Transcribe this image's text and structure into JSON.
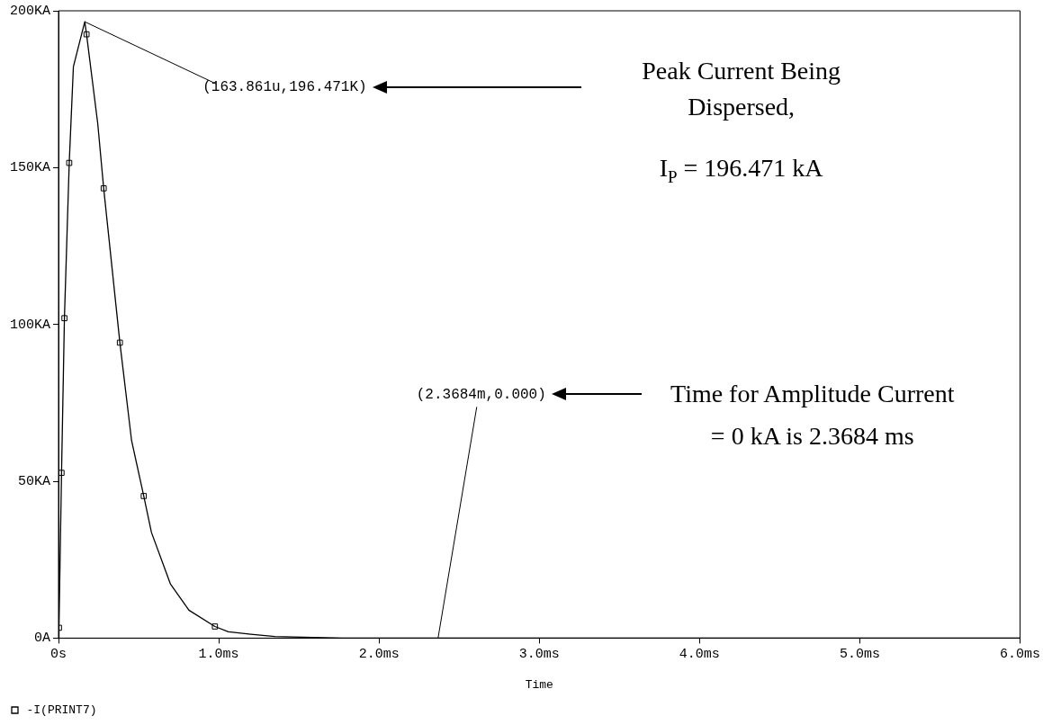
{
  "chart_data": {
    "type": "line",
    "xlabel": "Time",
    "xlim": [
      0,
      6
    ],
    "xticks": [
      {
        "value": 0,
        "label": "0s"
      },
      {
        "value": 1,
        "label": "1.0ms"
      },
      {
        "value": 2,
        "label": "2.0ms"
      },
      {
        "value": 3,
        "label": "3.0ms"
      },
      {
        "value": 4,
        "label": "4.0ms"
      },
      {
        "value": 5,
        "label": "5.0ms"
      },
      {
        "value": 6,
        "label": "6.0ms"
      }
    ],
    "ylim": [
      0,
      200
    ],
    "yticks": [
      {
        "value": 0,
        "label": "0A"
      },
      {
        "value": 50,
        "label": "50KA"
      },
      {
        "value": 100,
        "label": "100KA"
      },
      {
        "value": 150,
        "label": "150KA"
      },
      {
        "value": 200,
        "label": "200KA"
      }
    ],
    "series": [
      {
        "name": "-I(PRINT7)",
        "color": "#000000",
        "marker": "none",
        "x": [
          0,
          0.003,
          0.019,
          0.037,
          0.067,
          0.093,
          0.164,
          0.175,
          0.245,
          0.282,
          0.383,
          0.456,
          0.532,
          0.58,
          0.699,
          0.814,
          0.976,
          1.06,
          1.2,
          1.35,
          1.77,
          2.3684,
          6
        ],
        "values": [
          0,
          3.3,
          52.7,
          102,
          151.5,
          182.2,
          196.5,
          192.5,
          164,
          143.4,
          94.2,
          63,
          45.3,
          33.7,
          17.2,
          8.9,
          3.7,
          2.0,
          1.2,
          0.5,
          0,
          0,
          0
        ]
      },
      {
        "type": "scatter",
        "color": "#000000",
        "marker": "square",
        "x": [
          0.003,
          0.019,
          0.037,
          0.067,
          0.175,
          0.282,
          0.383,
          0.532,
          0.976
        ],
        "values": [
          3.3,
          52.7,
          102,
          151.5,
          192.5,
          143.4,
          94.2,
          45.3,
          3.7
        ]
      }
    ],
    "annotations": [
      {
        "text": "(163.861u,196.471K)",
        "x": 0.164,
        "y": 196.5
      },
      {
        "text": "(2.3684m,0.000)",
        "x": 2.3684,
        "y": 0
      },
      "Peak Current Being Dispersed,",
      "I$_{P}$ = 196.471 kA",
      "Time for Amplitude Current = 0 kA is 2.3684 ms"
    ],
    "grid": false,
    "legend": "bottom left"
  }
}
